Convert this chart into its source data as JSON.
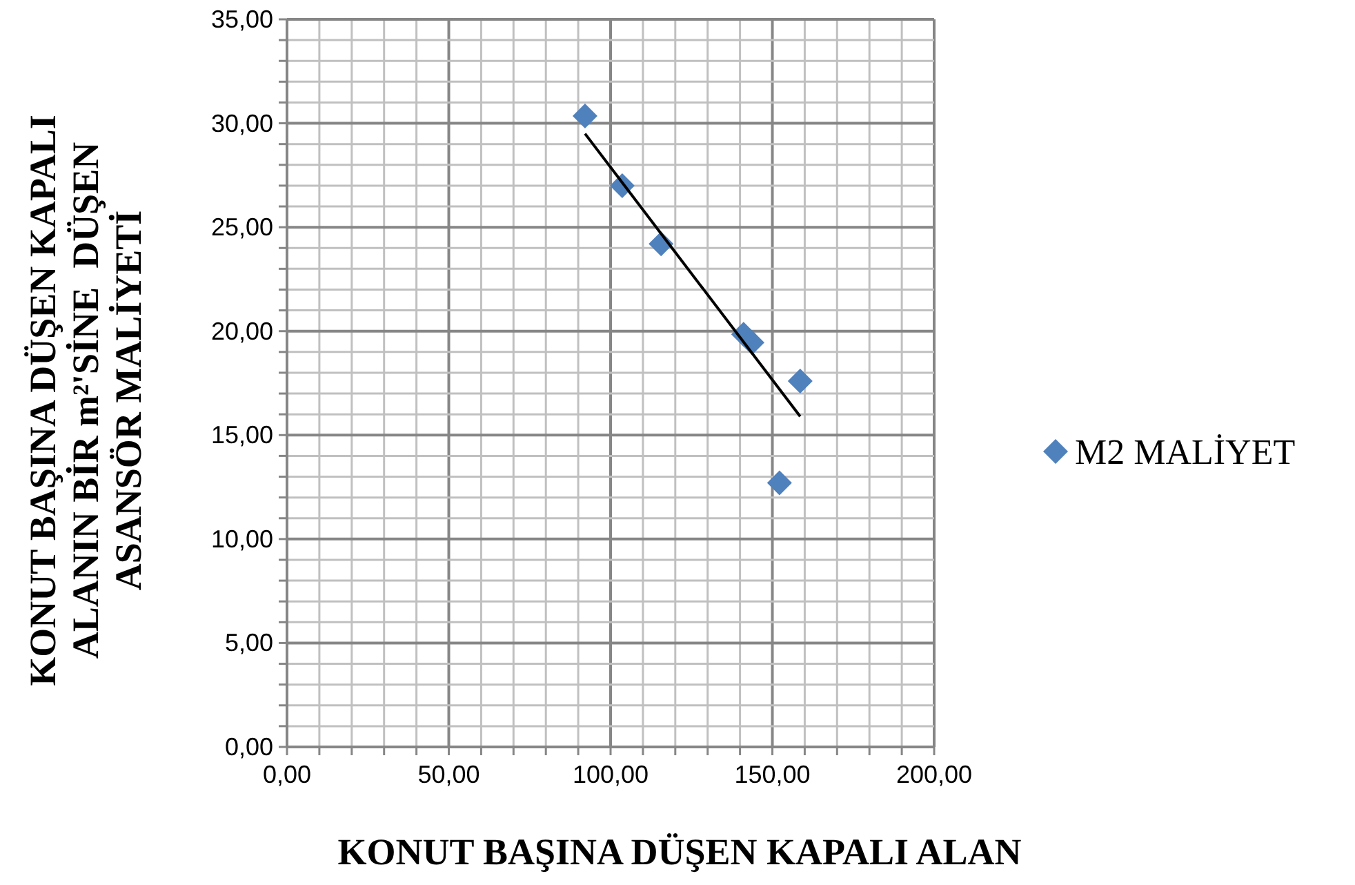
{
  "chart_data": {
    "type": "scatter",
    "xlabel": "KONUT BAŞINA DÜŞEN KAPALI ALAN",
    "ylabel": "KONUT BAŞINA DÜŞEN KAPALI ALANIN BİR m²'SİNE  DÜŞEN ASANSÖR MALİYETİ",
    "series": [
      {
        "name": "M2 MALİYET",
        "color": "#4f81bd",
        "marker": "diamond",
        "x": [
          92.1,
          103.6,
          115.6,
          141.1,
          143.7,
          158.6,
          152.2
        ],
        "values": [
          30.35,
          27.0,
          24.2,
          19.85,
          19.45,
          17.6,
          12.7
        ]
      },
      {
        "type": "line",
        "color": "#000000",
        "marker": "none",
        "line_style": "solid",
        "x": [
          92.1,
          158.6
        ],
        "values": [
          29.5,
          15.9
        ]
      }
    ],
    "xlim": [
      0,
      200
    ],
    "ylim": [
      0,
      35
    ],
    "xticks": [
      {
        "value": 0,
        "label": "0,00"
      },
      {
        "value": 10,
        "label": null
      },
      {
        "value": 20,
        "label": null
      },
      {
        "value": 30,
        "label": null
      },
      {
        "value": 40,
        "label": null
      },
      {
        "value": 50,
        "label": "50,00"
      },
      {
        "value": 60,
        "label": null
      },
      {
        "value": 70,
        "label": null
      },
      {
        "value": 80,
        "label": null
      },
      {
        "value": 90,
        "label": null
      },
      {
        "value": 100,
        "label": "100,00"
      },
      {
        "value": 110,
        "label": null
      },
      {
        "value": 120,
        "label": null
      },
      {
        "value": 130,
        "label": null
      },
      {
        "value": 140,
        "label": null
      },
      {
        "value": 150,
        "label": "150,00"
      },
      {
        "value": 160,
        "label": null
      },
      {
        "value": 170,
        "label": null
      },
      {
        "value": 180,
        "label": null
      },
      {
        "value": 190,
        "label": null
      },
      {
        "value": 200,
        "label": "200,00"
      }
    ],
    "yticks": [
      {
        "value": 0,
        "label": "0,00"
      },
      {
        "value": 1,
        "label": null
      },
      {
        "value": 2,
        "label": null
      },
      {
        "value": 3,
        "label": null
      },
      {
        "value": 4,
        "label": null
      },
      {
        "value": 5,
        "label": "5,00"
      },
      {
        "value": 6,
        "label": null
      },
      {
        "value": 7,
        "label": null
      },
      {
        "value": 8,
        "label": null
      },
      {
        "value": 9,
        "label": null
      },
      {
        "value": 10,
        "label": "10,00"
      },
      {
        "value": 11,
        "label": null
      },
      {
        "value": 12,
        "label": null
      },
      {
        "value": 13,
        "label": null
      },
      {
        "value": 14,
        "label": null
      },
      {
        "value": 15,
        "label": "15,00"
      },
      {
        "value": 16,
        "label": null
      },
      {
        "value": 17,
        "label": null
      },
      {
        "value": 18,
        "label": null
      },
      {
        "value": 19,
        "label": null
      },
      {
        "value": 20,
        "label": "20,00"
      },
      {
        "value": 21,
        "label": null
      },
      {
        "value": 22,
        "label": null
      },
      {
        "value": 23,
        "label": null
      },
      {
        "value": 24,
        "label": null
      },
      {
        "value": 25,
        "label": "25,00"
      },
      {
        "value": 26,
        "label": null
      },
      {
        "value": 27,
        "label": null
      },
      {
        "value": 28,
        "label": null
      },
      {
        "value": 29,
        "label": null
      },
      {
        "value": 30,
        "label": "30,00"
      },
      {
        "value": 31,
        "label": null
      },
      {
        "value": 32,
        "label": null
      },
      {
        "value": 33,
        "label": null
      },
      {
        "value": 34,
        "label": null
      },
      {
        "value": 35,
        "label": "35,00"
      }
    ],
    "grid": true,
    "legend": "right"
  }
}
